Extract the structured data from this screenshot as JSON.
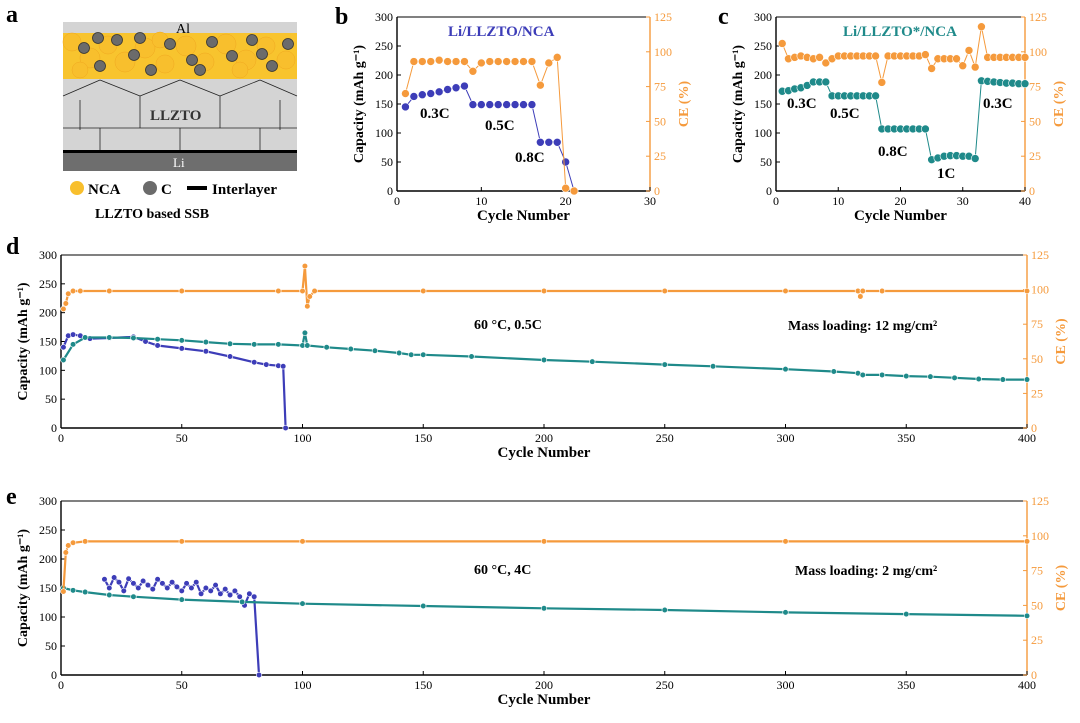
{
  "figure": {
    "panel_labels": [
      "a",
      "b",
      "c",
      "d",
      "e"
    ],
    "colors": {
      "capacity_blue": "#3d3db8",
      "capacity_teal": "#1f8a8a",
      "ce_orange": "#f59a3c",
      "axis_black": "#000000",
      "al_color": "#d0d0d0",
      "nca_yellow": "#f8bf2d",
      "carbon_gray": "#6b6b6b",
      "llzto_gray": "#d4d4d4",
      "li_gray": "#6e6e6e"
    }
  },
  "schematic": {
    "al_label": "Al",
    "llzto_label": "LLZTO",
    "li_label": "Li",
    "legend": {
      "nca": "NCA",
      "c": "C",
      "interlayer": "Interlayer"
    },
    "caption": "LLZTO based SSB"
  },
  "chart_data": [
    {
      "panel": "b",
      "type": "scatter",
      "title": "Li/LLZTO/NCA",
      "xlabel": "Cycle Number",
      "ylabel": "Capacity (mAh g⁻¹)",
      "y2label": "CE (%)",
      "xlim": [
        0,
        30
      ],
      "ylim": [
        0,
        300
      ],
      "y2lim": [
        0,
        125
      ],
      "xticks": [
        0,
        10,
        20,
        30
      ],
      "yticks": [
        0,
        50,
        100,
        150,
        200,
        250,
        300
      ],
      "y2ticks": [
        0,
        25,
        50,
        75,
        100,
        125
      ],
      "annotations": [
        "0.3C",
        "0.5C",
        "0.8C"
      ],
      "series": [
        {
          "axis": "left",
          "color": "blue",
          "x": [
            1,
            2,
            3,
            4,
            5,
            6,
            7,
            8,
            9,
            10,
            11,
            12,
            13,
            14,
            15,
            16,
            17,
            18,
            19,
            20,
            21
          ],
          "y": [
            145,
            163,
            166,
            168,
            171,
            175,
            178,
            181,
            149,
            149,
            149,
            149,
            149,
            149,
            149,
            149,
            84,
            84,
            84,
            50,
            0
          ]
        },
        {
          "axis": "right",
          "color": "orange",
          "x": [
            1,
            2,
            3,
            4,
            5,
            6,
            7,
            8,
            9,
            10,
            11,
            12,
            13,
            14,
            15,
            16,
            17,
            18,
            19,
            20,
            21
          ],
          "y": [
            70,
            93,
            93,
            93,
            94,
            93,
            93,
            93,
            86,
            92,
            93,
            93,
            93,
            93,
            93,
            93,
            76,
            92,
            96,
            2,
            0
          ]
        }
      ]
    },
    {
      "panel": "c",
      "type": "scatter",
      "title": "Li/LLZTO*/NCA",
      "xlabel": "Cycle Number",
      "ylabel": "Capacity (mAh g⁻¹)",
      "y2label": "CE (%)",
      "xlim": [
        0,
        40
      ],
      "ylim": [
        0,
        300
      ],
      "y2lim": [
        0,
        125
      ],
      "xticks": [
        0,
        10,
        20,
        30,
        40
      ],
      "yticks": [
        0,
        50,
        100,
        150,
        200,
        250,
        300
      ],
      "y2ticks": [
        0,
        25,
        50,
        75,
        100,
        125
      ],
      "annotations": [
        "0.3C",
        "0.5C",
        "0.8C",
        "1C",
        "0.3C"
      ],
      "series": [
        {
          "axis": "left",
          "color": "teal",
          "x": [
            1,
            2,
            3,
            4,
            5,
            6,
            7,
            8,
            9,
            10,
            11,
            12,
            13,
            14,
            15,
            16,
            17,
            18,
            19,
            20,
            21,
            22,
            23,
            24,
            25,
            26,
            27,
            28,
            29,
            30,
            31,
            32,
            33,
            34,
            35,
            36,
            37,
            38,
            39,
            40
          ],
          "y": [
            172,
            173,
            176,
            178,
            182,
            188,
            188,
            188,
            164,
            164,
            164,
            164,
            164,
            164,
            164,
            164,
            107,
            107,
            107,
            107,
            107,
            107,
            107,
            107,
            54,
            57,
            60,
            61,
            61,
            60,
            60,
            56,
            190,
            189,
            188,
            187,
            186,
            186,
            185,
            185
          ]
        },
        {
          "axis": "right",
          "color": "orange",
          "x": [
            1,
            2,
            3,
            4,
            5,
            6,
            7,
            8,
            9,
            10,
            11,
            12,
            13,
            14,
            15,
            16,
            17,
            18,
            19,
            20,
            21,
            22,
            23,
            24,
            25,
            26,
            27,
            28,
            29,
            30,
            31,
            32,
            33,
            34,
            35,
            36,
            37,
            38,
            39,
            40
          ],
          "y": [
            106,
            95,
            96,
            97,
            96,
            95,
            96,
            92,
            95,
            97,
            97,
            97,
            97,
            97,
            97,
            97,
            78,
            97,
            97,
            97,
            97,
            97,
            97,
            98,
            88,
            95,
            95,
            95,
            95,
            90,
            101,
            89,
            118,
            96,
            96,
            96,
            96,
            96,
            96,
            96
          ]
        }
      ]
    },
    {
      "panel": "d",
      "type": "scatter",
      "xlabel": "Cycle Number",
      "ylabel": "Capacity (mAh g⁻¹)",
      "y2label": "CE (%)",
      "xlim": [
        0,
        400
      ],
      "ylim": [
        0,
        300
      ],
      "y2lim": [
        0,
        125
      ],
      "xticks": [
        0,
        50,
        100,
        150,
        200,
        250,
        300,
        350,
        400
      ],
      "yticks": [
        0,
        50,
        100,
        150,
        200,
        250,
        300
      ],
      "y2ticks": [
        0,
        25,
        50,
        75,
        100,
        125
      ],
      "annotations": [
        "60 °C, 0.5C",
        "Mass loading: 12 mg/cm²"
      ],
      "series": [
        {
          "axis": "left",
          "color": "blue",
          "x": [
            1,
            3,
            5,
            8,
            12,
            20,
            30,
            35,
            40,
            50,
            60,
            70,
            80,
            85,
            90,
            92,
            93
          ],
          "y": [
            140,
            160,
            162,
            160,
            155,
            156,
            158,
            150,
            143,
            138,
            133,
            124,
            114,
            110,
            108,
            107,
            0
          ]
        },
        {
          "axis": "left",
          "color": "teal",
          "x": [
            1,
            5,
            10,
            20,
            30,
            40,
            50,
            60,
            70,
            80,
            90,
            100,
            101,
            102,
            110,
            120,
            130,
            140,
            145,
            150,
            170,
            200,
            220,
            250,
            270,
            300,
            320,
            330,
            332,
            340,
            350,
            360,
            370,
            380,
            390,
            400
          ],
          "y": [
            118,
            145,
            157,
            157,
            156,
            154,
            152,
            149,
            146,
            145,
            145,
            143,
            165,
            143,
            140,
            137,
            134,
            130,
            127,
            127,
            124,
            118,
            115,
            110,
            107,
            102,
            98,
            95,
            92,
            92,
            90,
            89,
            87,
            85,
            84,
            84
          ]
        },
        {
          "axis": "right",
          "color": "orange",
          "x": [
            1,
            2,
            3,
            5,
            8,
            20,
            50,
            90,
            100,
            101,
            102,
            103,
            105,
            150,
            200,
            250,
            300,
            330,
            331,
            332,
            340,
            400
          ],
          "y": [
            86,
            90,
            97,
            99,
            99,
            99,
            99,
            99,
            99,
            117,
            88,
            95,
            99,
            99,
            99,
            99,
            99,
            99,
            95,
            99,
            99,
            99
          ]
        }
      ]
    },
    {
      "panel": "e",
      "type": "scatter",
      "xlabel": "Cycle Number",
      "ylabel": "Capacity (mAh g⁻¹)",
      "y2label": "CE (%)",
      "xlim": [
        0,
        400
      ],
      "ylim": [
        0,
        300
      ],
      "y2lim": [
        0,
        125
      ],
      "xticks": [
        0,
        50,
        100,
        150,
        200,
        250,
        300,
        350,
        400
      ],
      "yticks": [
        0,
        50,
        100,
        150,
        200,
        250,
        300
      ],
      "y2ticks": [
        0,
        25,
        50,
        75,
        100,
        125
      ],
      "annotations": [
        "60 °C, 4C",
        "Mass loading: 2 mg/cm²"
      ],
      "series": [
        {
          "axis": "left",
          "color": "blue",
          "x": [
            18,
            20,
            22,
            24,
            26,
            28,
            30,
            32,
            34,
            36,
            38,
            40,
            42,
            44,
            46,
            48,
            50,
            52,
            54,
            56,
            58,
            60,
            62,
            64,
            66,
            68,
            70,
            72,
            74,
            76,
            78,
            80,
            82
          ],
          "y": [
            165,
            150,
            168,
            160,
            145,
            166,
            158,
            150,
            162,
            155,
            148,
            165,
            158,
            150,
            160,
            152,
            145,
            158,
            150,
            160,
            140,
            150,
            145,
            155,
            140,
            148,
            138,
            145,
            135,
            120,
            140,
            135,
            0
          ]
        },
        {
          "axis": "left",
          "color": "teal",
          "x": [
            1,
            5,
            10,
            20,
            30,
            50,
            75,
            100,
            150,
            200,
            250,
            300,
            350,
            400
          ],
          "y": [
            150,
            146,
            143,
            138,
            135,
            130,
            126,
            123,
            119,
            115,
            112,
            108,
            105,
            102
          ]
        },
        {
          "axis": "right",
          "color": "orange",
          "x": [
            1,
            2,
            3,
            5,
            10,
            50,
            100,
            200,
            300,
            400
          ],
          "y": [
            60,
            88,
            93,
            95,
            96,
            96,
            96,
            96,
            96,
            96
          ]
        }
      ]
    }
  ]
}
